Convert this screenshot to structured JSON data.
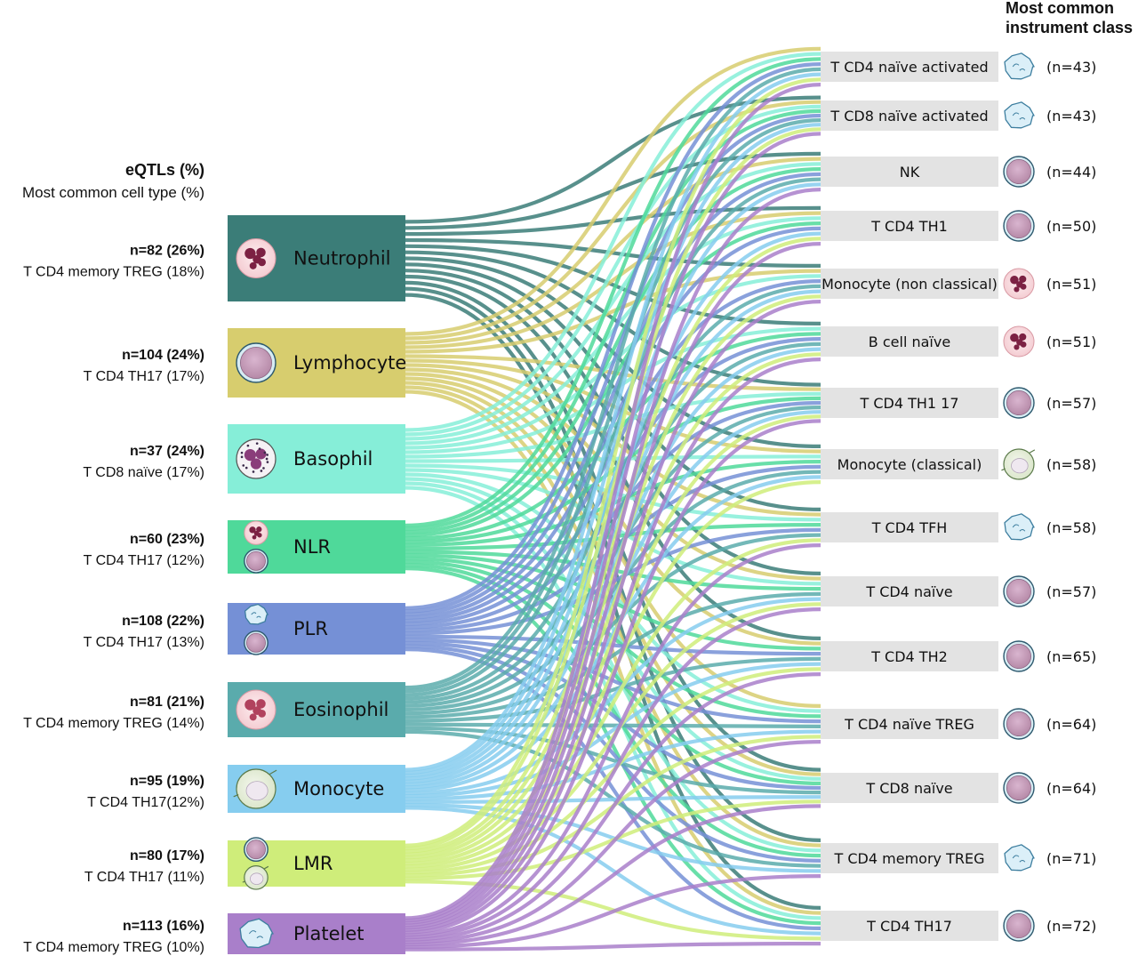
{
  "header_left": {
    "title": "eQTLs (%)",
    "subtitle": "Most common cell type (%)"
  },
  "header_right": {
    "line1": "Most common",
    "line2": "instrument class"
  },
  "colors": {
    "Neutrophil": "#3b7d78",
    "Lymphocyte": "#d7cd6e",
    "Basophil": "#86eed8",
    "NLR": "#4fd99a",
    "PLR": "#7590d6",
    "Eosinophil": "#5aabac",
    "Monocyte": "#86cdef",
    "LMR": "#cfed7a",
    "Platelet": "#a97fca",
    "target_box": "#e3e3e3"
  },
  "sources": [
    {
      "name": "Neutrophil",
      "icon": "neutrophil-icon",
      "stat": "n=82 (26%)",
      "cell": "T CD4 memory TREG (18%)"
    },
    {
      "name": "Lymphocyte",
      "icon": "lymphocyte-icon",
      "stat": "n=104 (24%)",
      "cell": "T CD4 TH17 (17%)"
    },
    {
      "name": "Basophil",
      "icon": "basophil-icon",
      "stat": "n=37 (24%)",
      "cell": "T CD8 naïve (17%)"
    },
    {
      "name": "NLR",
      "icon": "neutrophil-lymphocyte-icon",
      "stat": "n=60 (23%)",
      "cell": "T CD4 TH17 (12%)"
    },
    {
      "name": "PLR",
      "icon": "platelet-lymphocyte-icon",
      "stat": "n=108 (22%)",
      "cell": "T CD4 TH17 (13%)"
    },
    {
      "name": "Eosinophil",
      "icon": "eosinophil-icon",
      "stat": "n=81 (21%)",
      "cell": "T CD4 memory TREG (14%)"
    },
    {
      "name": "Monocyte",
      "icon": "monocyte-icon",
      "stat": "n=95 (19%)",
      "cell": "T CD4 TH17(12%)"
    },
    {
      "name": "LMR",
      "icon": "lymphocyte-monocyte-icon",
      "stat": "n=80 (17%)",
      "cell": "T CD4 TH17 (11%)"
    },
    {
      "name": "Platelet",
      "icon": "platelet-icon",
      "stat": "n=113 (16%)",
      "cell": "T CD4 memory TREG (10%)"
    }
  ],
  "targets": [
    {
      "name": "T CD4 naïve activated",
      "icon": "platelet-icon",
      "count": "(n=43)"
    },
    {
      "name": "T CD8 naïve activated",
      "icon": "platelet-icon",
      "count": "(n=43)"
    },
    {
      "name": "NK",
      "icon": "lymphocyte-icon",
      "count": "(n=44)"
    },
    {
      "name": "T CD4 TH1",
      "icon": "lymphocyte-icon",
      "count": "(n=50)"
    },
    {
      "name": "Monocyte (non classical)",
      "icon": "neutrophil-icon",
      "count": "(n=51)"
    },
    {
      "name": "B cell naïve",
      "icon": "neutrophil-icon",
      "count": "(n=51)"
    },
    {
      "name": "T CD4 TH1 17",
      "icon": "lymphocyte-icon",
      "count": "(n=57)"
    },
    {
      "name": "Monocyte (classical)",
      "icon": "monocyte-icon",
      "count": "(n=58)"
    },
    {
      "name": "T CD4 TFH",
      "icon": "platelet-icon",
      "count": "(n=58)"
    },
    {
      "name": "T CD4 naïve",
      "icon": "lymphocyte-icon",
      "count": "(n=57)"
    },
    {
      "name": "T CD4 TH2",
      "icon": "lymphocyte-icon",
      "count": "(n=65)"
    },
    {
      "name": "T CD4 naïve TREG",
      "icon": "lymphocyte-icon",
      "count": "(n=64)"
    },
    {
      "name": "T CD8 naïve",
      "icon": "lymphocyte-icon",
      "count": "(n=64)"
    },
    {
      "name": "T CD4 memory TREG",
      "icon": "platelet-icon",
      "count": "(n=71)"
    },
    {
      "name": "T CD4 TH17",
      "icon": "lymphocyte-icon",
      "count": "(n=72)"
    }
  ]
}
